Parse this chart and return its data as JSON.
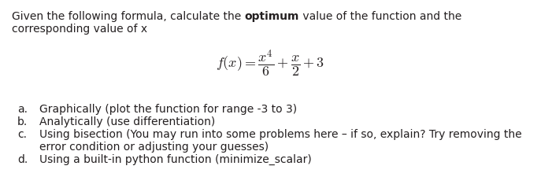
{
  "bg_color": "#ffffff",
  "text_color": "#231f20",
  "intro_normal_1": "Given the following formula, calculate the ",
  "intro_bold": "optimum",
  "intro_normal_2": " value of the function and the",
  "intro_line2": "corresponding value of x",
  "formula_latex": "$f(x) = \\dfrac{x^4}{6} + \\dfrac{x}{2} + 3$",
  "items": [
    {
      "label": "a.",
      "text": "Graphically (plot the function for range -3 to 3)"
    },
    {
      "label": "b.",
      "text": "Analytically (use differentiation)"
    },
    {
      "label": "c.",
      "text": "Using bisection (You may run into some problems here – if so, explain? Try removing the"
    },
    {
      "label": "",
      "text": "error condition or adjusting your guesses)"
    },
    {
      "label": "d.",
      "text": "Using a built-in python function (minimize_scalar)"
    }
  ],
  "figsize": [
    6.87,
    2.39
  ],
  "dpi": 100,
  "fs_body": 10,
  "fs_formula": 13
}
